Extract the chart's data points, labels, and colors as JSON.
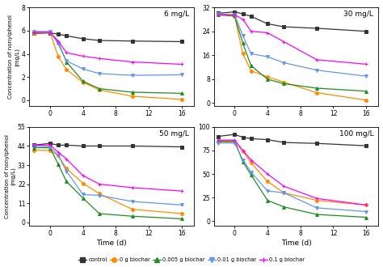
{
  "time": [
    -2,
    0,
    1,
    2,
    4,
    6,
    10,
    16
  ],
  "panels": [
    {
      "label": "6 mg/L",
      "ylim": [
        -0.5,
        8
      ],
      "yticks": [
        0,
        2,
        4,
        6,
        8
      ],
      "series": {
        "control": [
          5.75,
          5.8,
          5.7,
          5.55,
          5.3,
          5.15,
          5.1,
          5.05
        ],
        "0g": [
          5.8,
          5.85,
          3.75,
          2.65,
          1.55,
          0.9,
          0.35,
          0.08
        ],
        "0.005g": [
          5.9,
          5.9,
          5.0,
          3.3,
          1.65,
          1.0,
          0.7,
          0.6
        ],
        "0.01g": [
          5.9,
          5.9,
          4.85,
          3.4,
          2.7,
          2.3,
          2.15,
          2.2
        ],
        "0.1g": [
          5.85,
          5.85,
          5.1,
          4.1,
          3.8,
          3.6,
          3.3,
          3.1
        ]
      }
    },
    {
      "label": "30 mg/L",
      "ylim": [
        -1,
        32
      ],
      "yticks": [
        0,
        8,
        16,
        24,
        32
      ],
      "series": {
        "control": [
          30.0,
          30.5,
          29.8,
          29.0,
          26.5,
          25.5,
          25.0,
          24.0
        ],
        "0g": [
          29.5,
          29.0,
          16.5,
          10.8,
          8.8,
          7.0,
          3.5,
          1.0
        ],
        "0.005g": [
          29.5,
          29.2,
          20.0,
          12.5,
          8.0,
          6.5,
          5.0,
          4.0
        ],
        "0.01g": [
          29.8,
          29.5,
          22.5,
          16.5,
          15.5,
          13.5,
          11.0,
          9.0
        ],
        "0.1g": [
          29.5,
          29.5,
          28.0,
          24.0,
          23.5,
          20.5,
          14.5,
          13.0
        ]
      }
    },
    {
      "label": "50 mg/L",
      "ylim": [
        -2,
        55
      ],
      "yticks": [
        0,
        11,
        22,
        33,
        44,
        55
      ],
      "series": {
        "control": [
          44.5,
          45.5,
          44.5,
          44.5,
          44.0,
          44.0,
          44.0,
          43.5
        ],
        "0g": [
          41.5,
          41.5,
          38.5,
          31.0,
          22.5,
          16.5,
          7.5,
          5.0
        ],
        "0.005g": [
          43.0,
          43.0,
          33.5,
          23.5,
          14.0,
          5.0,
          3.5,
          2.0
        ],
        "0.01g": [
          44.0,
          43.5,
          38.5,
          29.5,
          16.0,
          15.5,
          12.0,
          10.0
        ],
        "0.1g": [
          44.5,
          44.5,
          40.5,
          36.5,
          27.0,
          22.0,
          20.0,
          18.0
        ]
      }
    },
    {
      "label": "100 mg/L",
      "ylim": [
        -5,
        100
      ],
      "yticks": [
        0,
        25,
        50,
        75,
        100
      ],
      "series": {
        "control": [
          90.0,
          92.0,
          89.0,
          87.5,
          86.5,
          83.5,
          82.5,
          80.0
        ],
        "0g": [
          84.0,
          84.0,
          74.0,
          62.0,
          42.0,
          30.0,
          22.0,
          17.0
        ],
        "0.005g": [
          85.0,
          85.0,
          63.0,
          49.0,
          22.0,
          15.0,
          7.0,
          4.0
        ],
        "0.01g": [
          83.0,
          83.0,
          65.0,
          52.0,
          32.0,
          30.0,
          14.0,
          10.0
        ],
        "0.1g": [
          86.0,
          86.0,
          75.0,
          65.0,
          50.0,
          37.0,
          24.0,
          17.0
        ]
      }
    }
  ],
  "colors": {
    "control": "#333333",
    "0g": "#FF8C00",
    "0.005g": "#228B22",
    "0.01g": "#6495ED",
    "0.1g": "#FF00FF"
  },
  "markers": {
    "control": "s",
    "0g": "o",
    "0.005g": "^",
    "0.01g": "v",
    "0.1g": "+"
  },
  "legend_labels": {
    "control": "control",
    "0g": "0 g biochar",
    "0.005g": "0.005 g biochar",
    "0.01g": "0.01 g biochar",
    "0.1g": "0.1 g biochar"
  },
  "xticks": [
    0,
    4,
    8,
    12,
    16
  ],
  "xlabel": "Time (d)",
  "ylabel": "Concentration of nonylphenol\n(mg/L)"
}
